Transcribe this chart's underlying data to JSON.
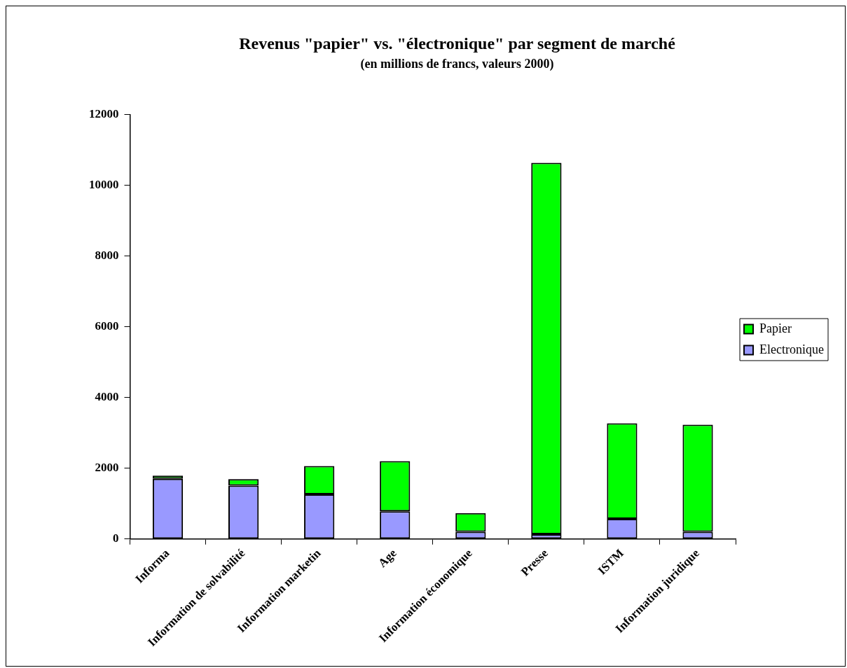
{
  "chart_data": {
    "type": "bar",
    "title": "Revenus \"papier\" vs. \"électronique\" par segment de marché",
    "subtitle": "(en millions de francs, valeurs 2000)",
    "categories": [
      "Informa",
      "Information de solvabilité",
      "Information marketin",
      "Age",
      "Information économique",
      "Presse",
      "ISTM",
      "Information juridique"
    ],
    "stacked": true,
    "series": [
      {
        "name": "Electronique",
        "color": "#9999ff",
        "values": [
          1700,
          1510,
          1260,
          780,
          200,
          130,
          570,
          200
        ]
      },
      {
        "name": "Papier",
        "color": "#00ff00",
        "values": [
          90,
          180,
          800,
          1420,
          530,
          10500,
          2700,
          3030
        ]
      }
    ],
    "ylim": [
      0,
      12000
    ],
    "yticks": [
      0,
      2000,
      4000,
      6000,
      8000,
      10000,
      12000
    ],
    "grid": false,
    "legend": "right"
  }
}
